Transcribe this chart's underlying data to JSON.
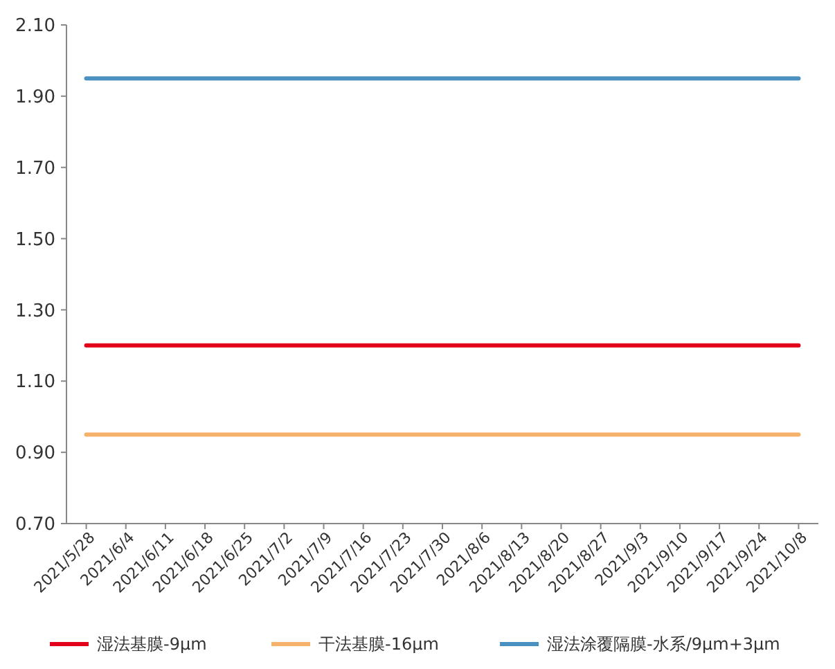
{
  "chart_data": {
    "type": "line",
    "categories": [
      "2021/5/28",
      "2021/6/4",
      "2021/6/11",
      "2021/6/18",
      "2021/6/25",
      "2021/7/2",
      "2021/7/9",
      "2021/7/16",
      "2021/7/23",
      "2021/7/30",
      "2021/8/6",
      "2021/8/13",
      "2021/8/20",
      "2021/8/27",
      "2021/9/3",
      "2021/9/10",
      "2021/9/17",
      "2021/9/24",
      "2021/10/8"
    ],
    "series": [
      {
        "name": "湿法基膜-9μm",
        "color": "#e3001b",
        "values": [
          1.2,
          1.2,
          1.2,
          1.2,
          1.2,
          1.2,
          1.2,
          1.2,
          1.2,
          1.2,
          1.2,
          1.2,
          1.2,
          1.2,
          1.2,
          1.2,
          1.2,
          1.2,
          1.2
        ]
      },
      {
        "name": "干法基膜-16μm",
        "color": "#f6b26b",
        "values": [
          0.95,
          0.95,
          0.95,
          0.95,
          0.95,
          0.95,
          0.95,
          0.95,
          0.95,
          0.95,
          0.95,
          0.95,
          0.95,
          0.95,
          0.95,
          0.95,
          0.95,
          0.95,
          0.95
        ]
      },
      {
        "name": "湿法涂覆隔膜-水系/9μm+3μm",
        "color": "#4a90c0",
        "values": [
          1.95,
          1.95,
          1.95,
          1.95,
          1.95,
          1.95,
          1.95,
          1.95,
          1.95,
          1.95,
          1.95,
          1.95,
          1.95,
          1.95,
          1.95,
          1.95,
          1.95,
          1.95,
          1.95
        ]
      }
    ],
    "ylim": [
      0.7,
      2.1
    ],
    "yticks": [
      {
        "value": 0.7,
        "label": "0.70"
      },
      {
        "value": 0.9,
        "label": "0.90"
      },
      {
        "value": 1.1,
        "label": "1.10"
      },
      {
        "value": 1.3,
        "label": "1.30"
      },
      {
        "value": 1.5,
        "label": "1.50"
      },
      {
        "value": 1.7,
        "label": "1.70"
      },
      {
        "value": 1.9,
        "label": "1.90"
      },
      {
        "value": 2.1,
        "label": "2.10"
      }
    ],
    "grid": false,
    "legend": "bottom",
    "line_style": "solid"
  }
}
